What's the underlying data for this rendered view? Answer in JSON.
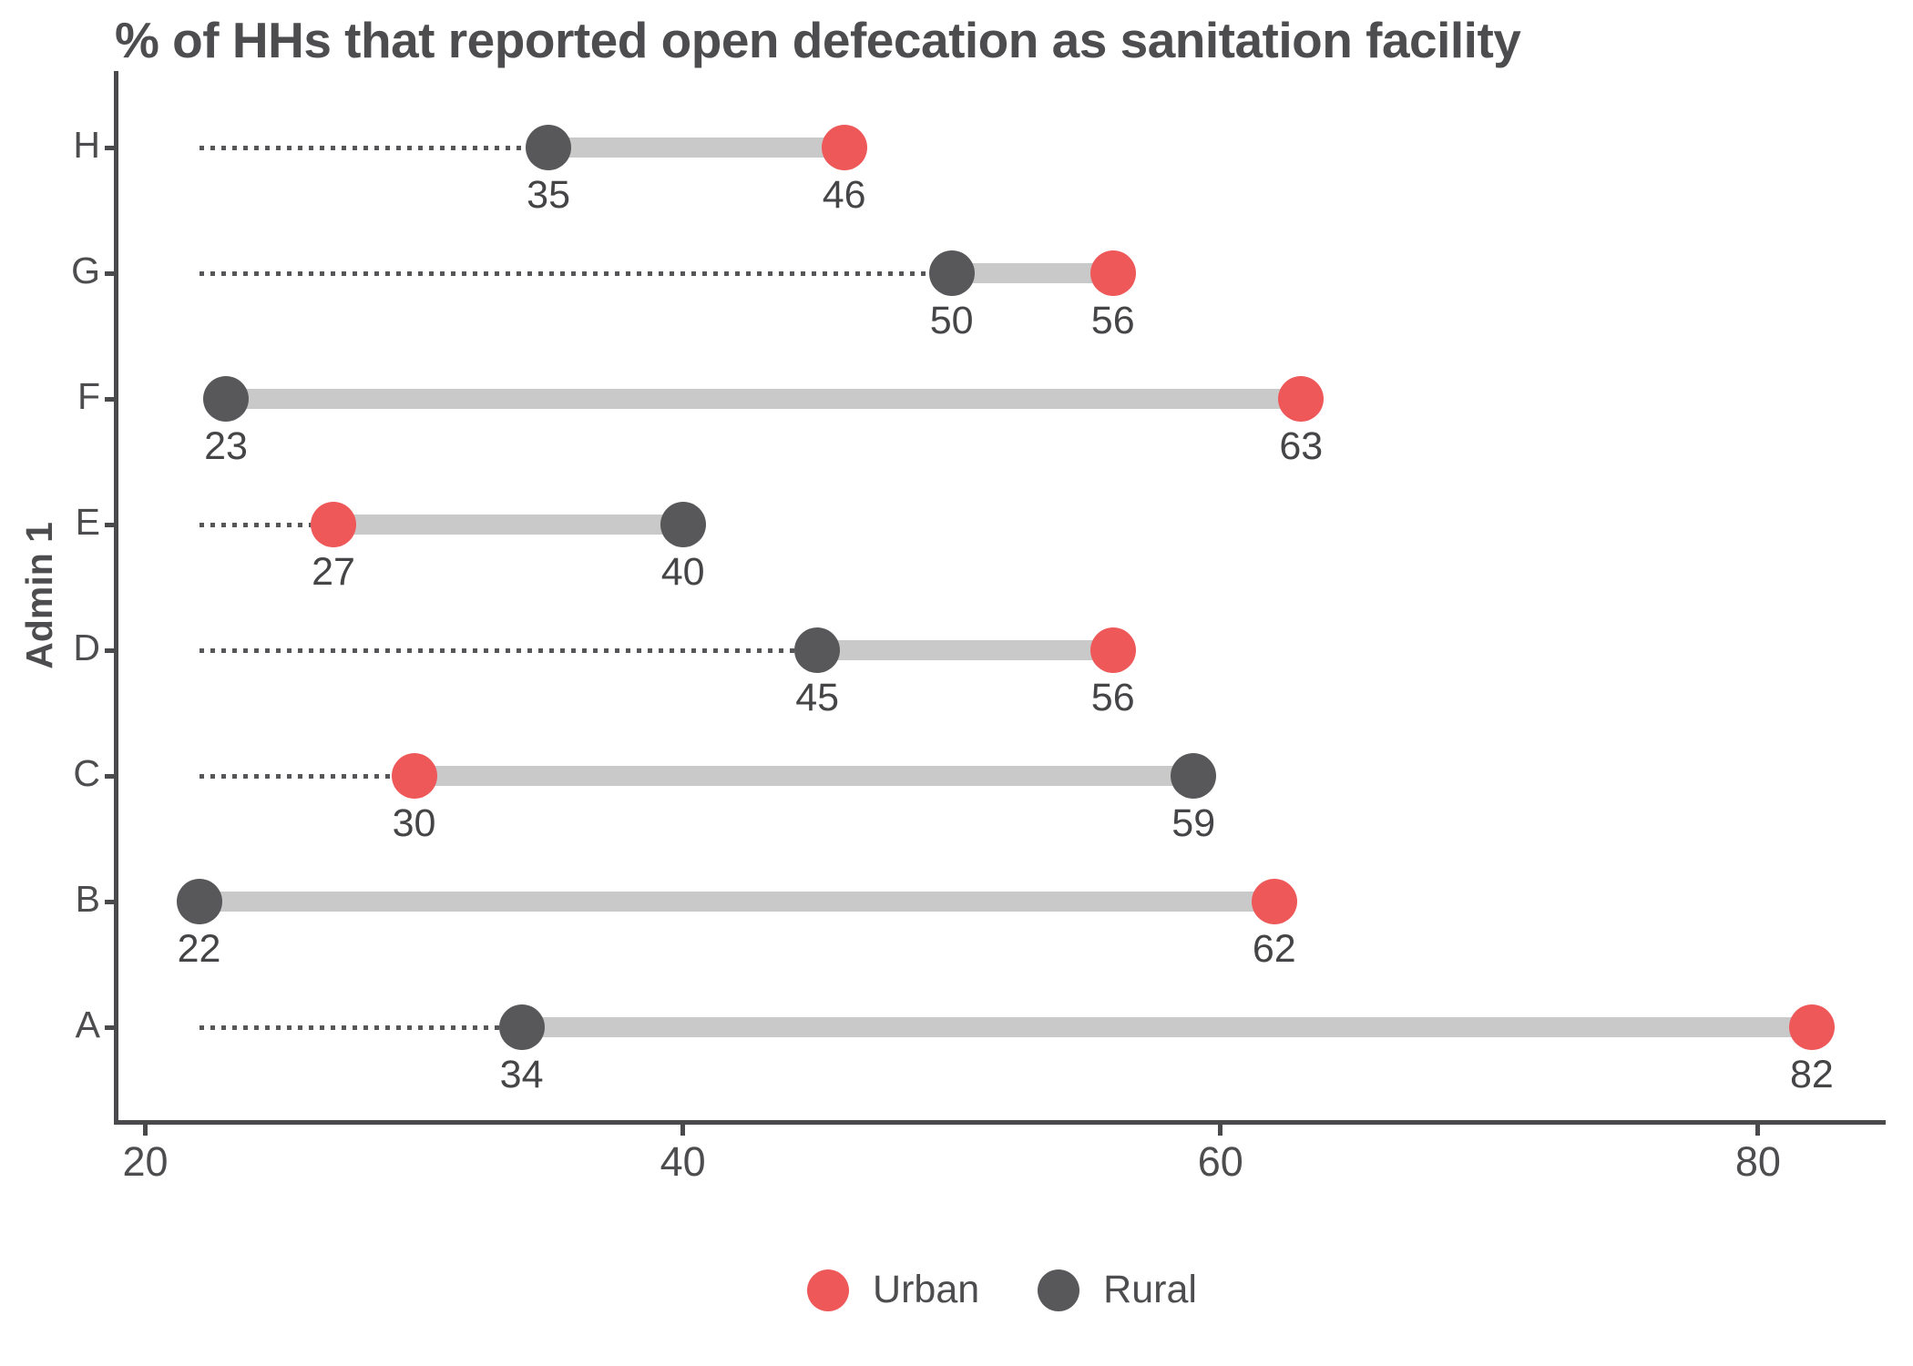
{
  "title": "% of HHs that reported open defecation as sanitation facility",
  "chart_data": {
    "type": "dumbbell",
    "orientation": "horizontal",
    "title": "% of HHs that reported open defecation as sanitation facility",
    "xlabel": "",
    "ylabel": "Admin 1",
    "categories": [
      "H",
      "G",
      "F",
      "E",
      "D",
      "C",
      "B",
      "A"
    ],
    "categories_order": "top-to-bottom",
    "series": [
      {
        "name": "Urban",
        "color": "#ee5859",
        "values": [
          46,
          56,
          63,
          27,
          56,
          30,
          62,
          82
        ]
      },
      {
        "name": "Rural",
        "color": "#58585a",
        "values": [
          35,
          50,
          23,
          40,
          45,
          59,
          22,
          34
        ]
      }
    ],
    "x_ticks": [
      20,
      40,
      60,
      80
    ],
    "xlim": [
      19,
      84.75
    ],
    "grid": false,
    "legend_position": "bottom",
    "connector_color": "#c9c9c9",
    "leader_line_color": "#565658",
    "leader_line_style": "dotted",
    "leader_line_start_value": 22,
    "value_labels": "below-each-point"
  },
  "legend": [
    {
      "label": "Urban",
      "color": "#ee5859"
    },
    {
      "label": "Rural",
      "color": "#58585a"
    }
  ],
  "colors": {
    "axis": "#4a4a4c",
    "text": "#454547",
    "title": "#4d4d4f",
    "background": "#ffffff"
  }
}
